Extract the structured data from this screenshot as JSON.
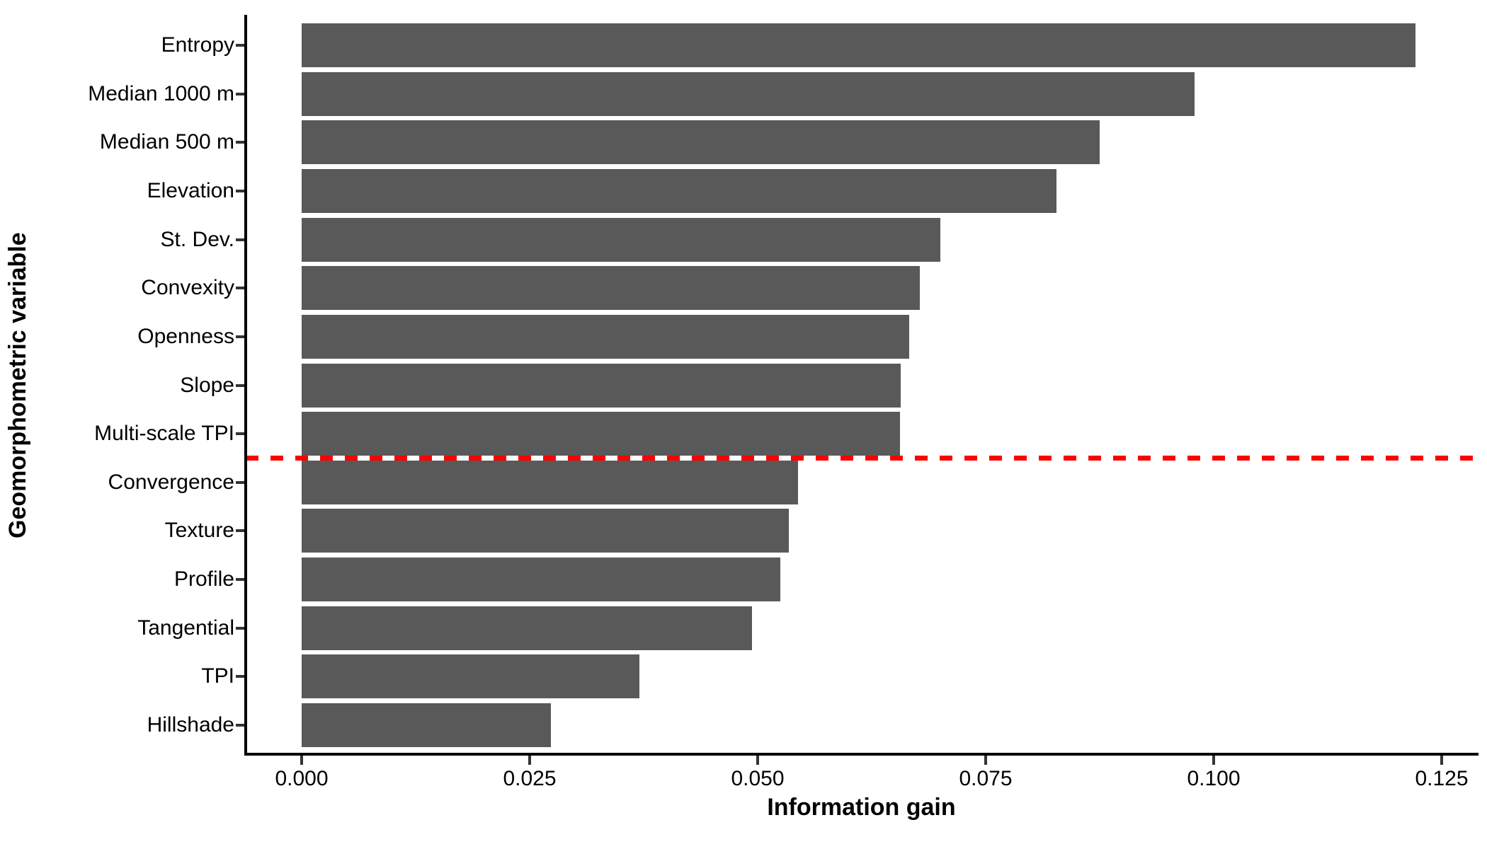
{
  "figure": {
    "background": "#FFFFFF"
  },
  "chart_data": {
    "type": "bar",
    "orientation": "horizontal",
    "title": "",
    "xlabel": "Information gain",
    "ylabel": "Geomorphometric variable",
    "categories": [
      "Entropy",
      "Median 1000 m",
      "Median 500 m",
      "Elevation",
      "St. Dev.",
      "Convexity",
      "Openness",
      "Slope",
      "Multi-scale TPI",
      "Convergence",
      "Texture",
      "Profile",
      "Tangential",
      "TPI",
      "Hillshade"
    ],
    "values": [
      0.1221,
      0.0979,
      0.0875,
      0.0828,
      0.07,
      0.0678,
      0.0666,
      0.0657,
      0.0656,
      0.0544,
      0.0534,
      0.0525,
      0.0494,
      0.037,
      0.0273
    ],
    "xlim": [
      0,
      0.125
    ],
    "x_ticks": [
      {
        "value": 0.0,
        "label": "0.000"
      },
      {
        "value": 0.025,
        "label": "0.025"
      },
      {
        "value": 0.05,
        "label": "0.050"
      },
      {
        "value": 0.075,
        "label": "0.075"
      },
      {
        "value": 0.1,
        "label": "0.100"
      },
      {
        "value": 0.125,
        "label": "0.125"
      }
    ],
    "grid": false,
    "legend": "none",
    "bar_color": "#595959",
    "axis_color": "#000000",
    "tick_color": "#333333",
    "text_color": "#000000",
    "threshold_line": {
      "style": "horizontal-dashed",
      "color": "#FF0000",
      "between_categories": [
        "Multi-scale TPI",
        "Convergence"
      ],
      "after_index": 8
    }
  }
}
